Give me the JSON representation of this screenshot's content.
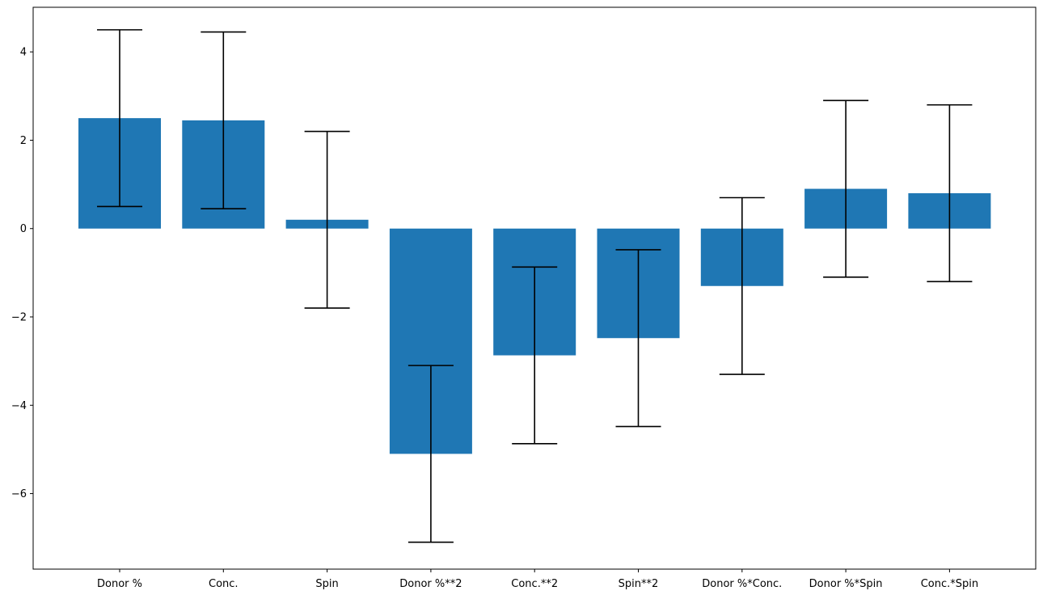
{
  "chart_data": {
    "type": "bar",
    "categories": [
      "Donor %",
      "Conc.",
      "Spin",
      "Donor %**2",
      "Conc.**2",
      "Spin**2",
      "Donor %*Conc.",
      "Donor %*Spin",
      "Conc.*Spin"
    ],
    "values": [
      2.5,
      2.45,
      0.2,
      -5.1,
      -2.87,
      -2.48,
      -1.3,
      0.9,
      0.8
    ],
    "error": [
      2.0,
      2.0,
      2.0,
      2.0,
      2.0,
      2.0,
      2.0,
      2.0,
      2.0
    ],
    "title": "",
    "xlabel": "",
    "ylabel": "",
    "ylim": [
      -7.71,
      5.01
    ],
    "yticks": [
      -6,
      -4,
      -2,
      0,
      2,
      4
    ],
    "ytick_labels": [
      "−6",
      "−4",
      "−2",
      "0",
      "2",
      "4"
    ],
    "grid": false,
    "bar_color": "#1f77b4",
    "error_color": "#000000"
  }
}
